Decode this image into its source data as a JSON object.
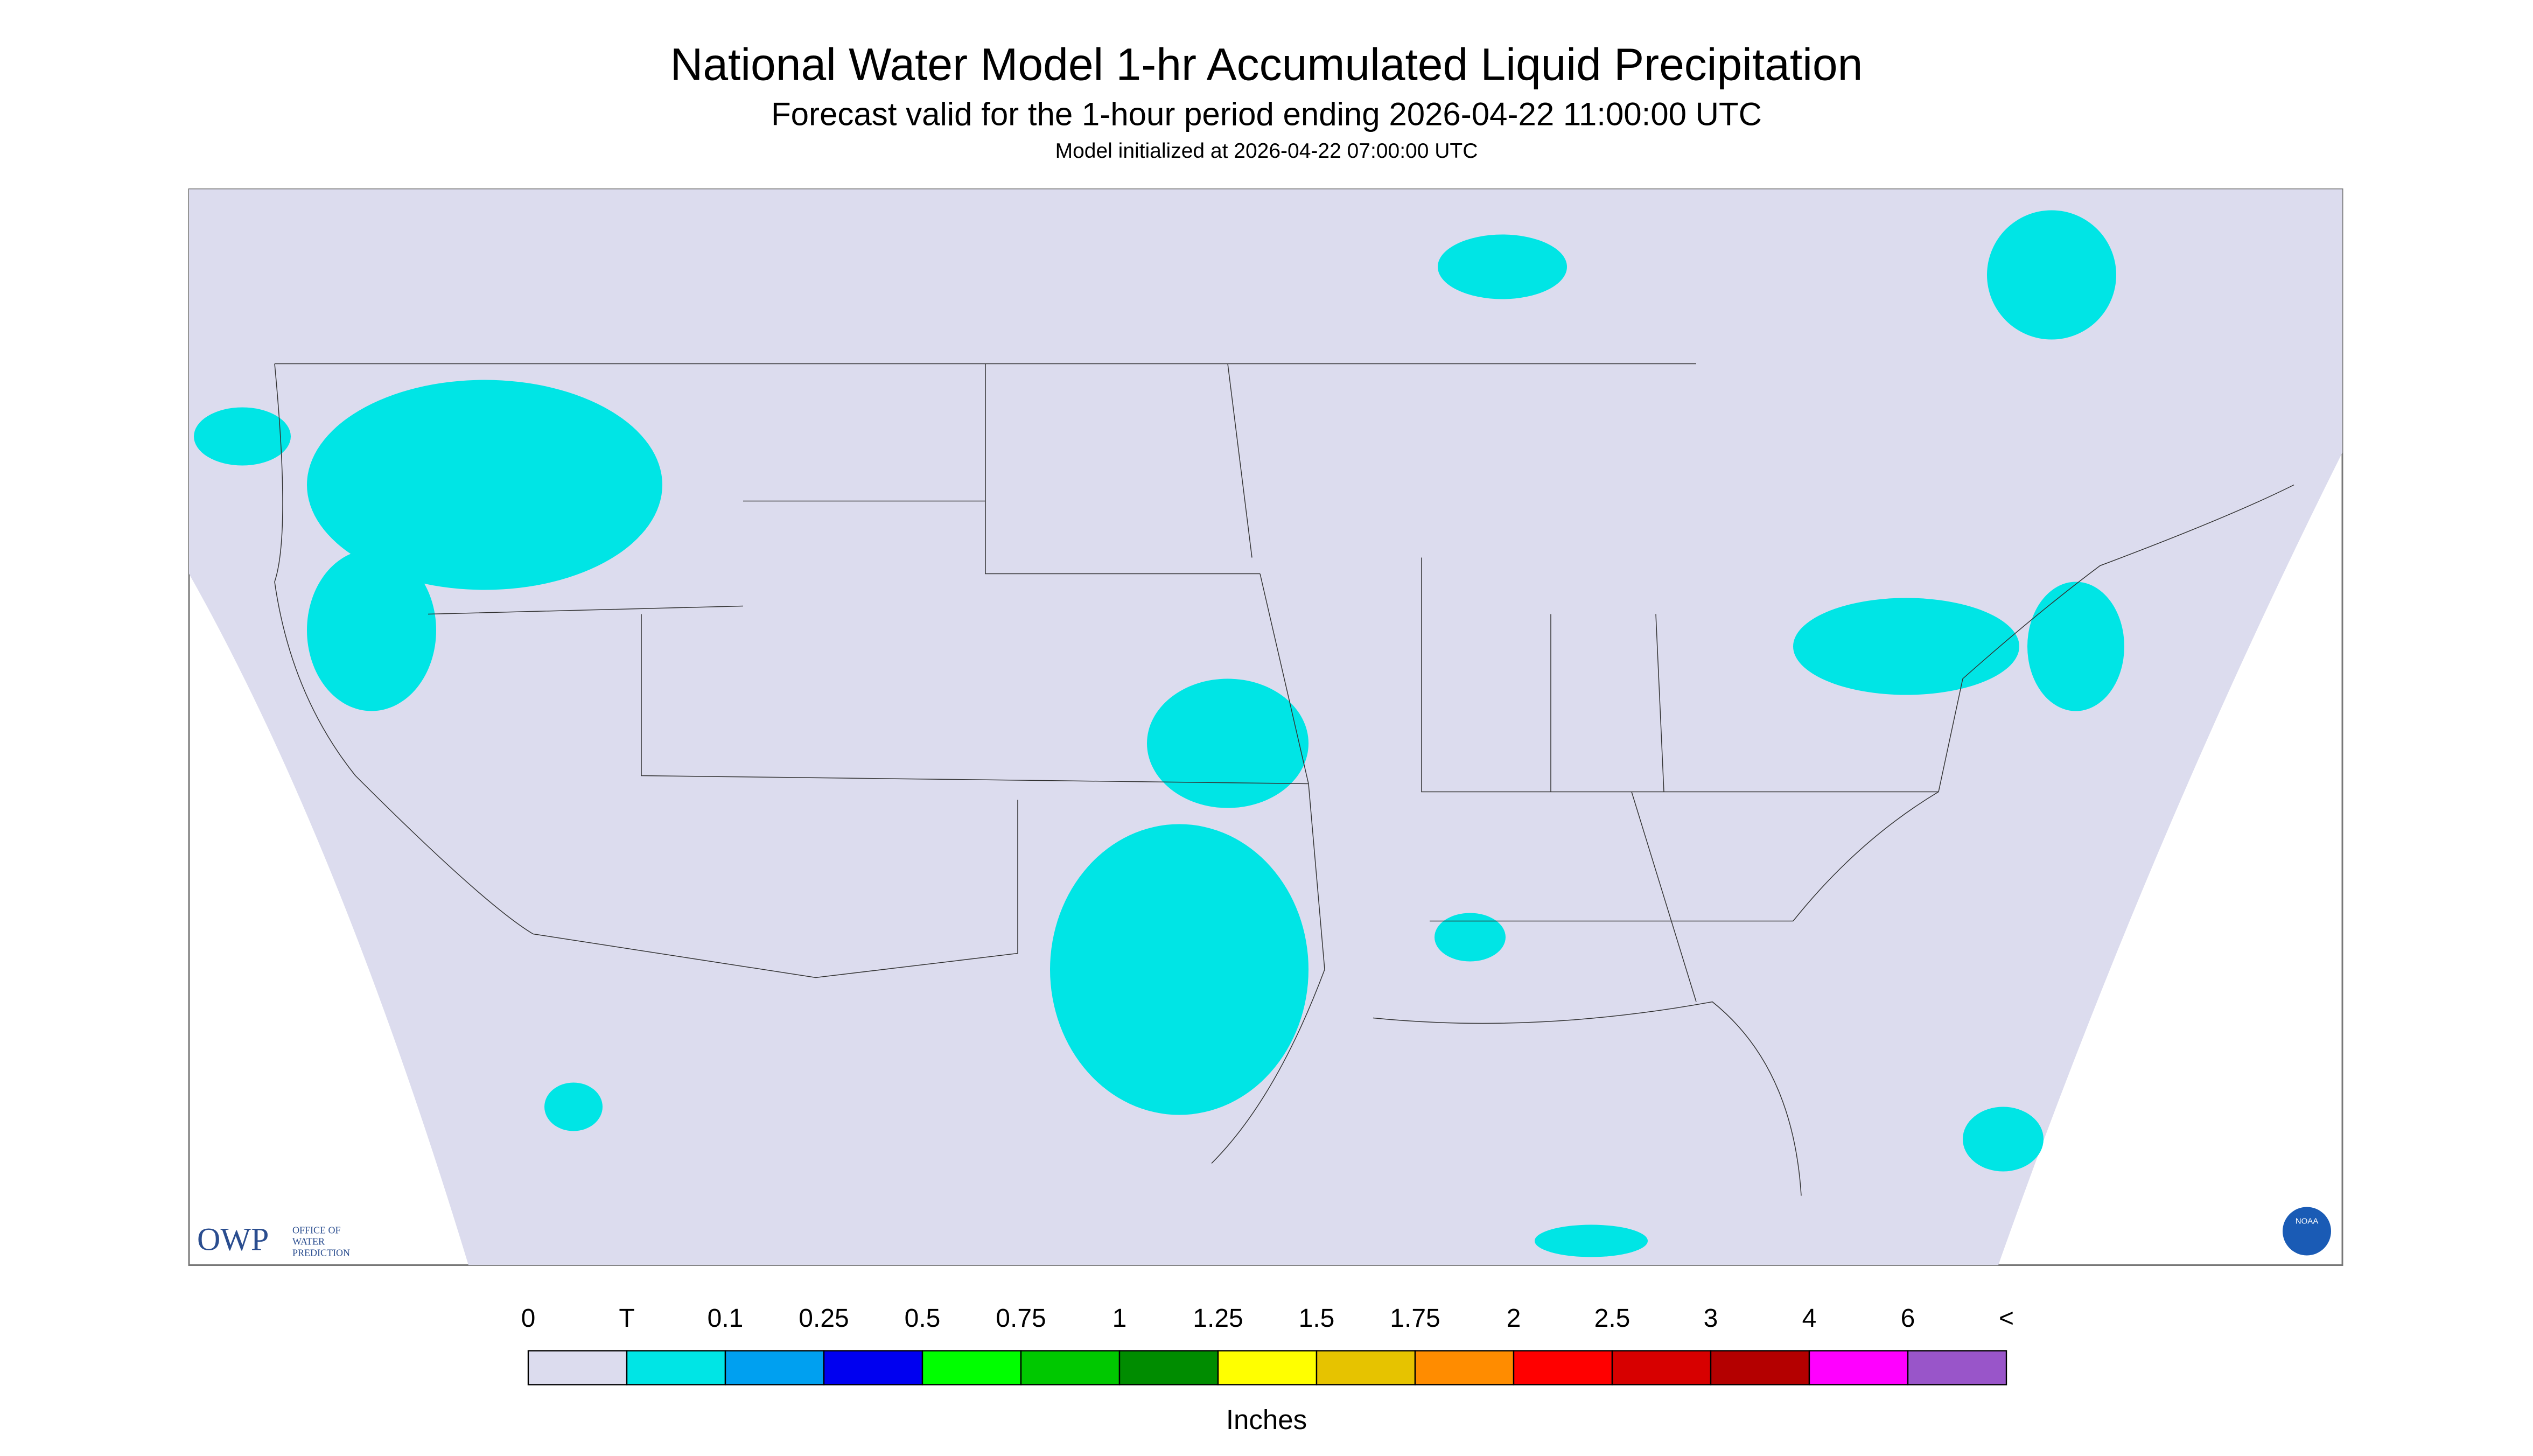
{
  "header": {
    "title": "National Water Model 1-hr Accumulated Liquid Precipitation",
    "subtitle": "Forecast valid for the 1-hour period ending 2026-04-22 11:00:00 UTC",
    "note": "Model initialized at 2026-04-22 07:00:00 UTC"
  },
  "logo": {
    "abbr": "OWP",
    "name": [
      "OFFICE OF",
      "WATER",
      "PREDICTION"
    ],
    "noaa": "NOAA"
  },
  "legend": {
    "labels": [
      "0",
      "T",
      "0.1",
      "0.25",
      "0.5",
      "0.75",
      "1",
      "1.25",
      "1.5",
      "1.75",
      "2",
      "2.5",
      "3",
      "4",
      "6",
      "<"
    ],
    "colors": [
      "#dcdcee",
      "#00e5e5",
      "#00a0f0",
      "#0000f0",
      "#00ff00",
      "#00c800",
      "#008c00",
      "#ffff00",
      "#e6c300",
      "#ff8c00",
      "#ff0000",
      "#d70000",
      "#b40000",
      "#ff00ff",
      "#9955c9"
    ],
    "unit": "Inches"
  }
}
